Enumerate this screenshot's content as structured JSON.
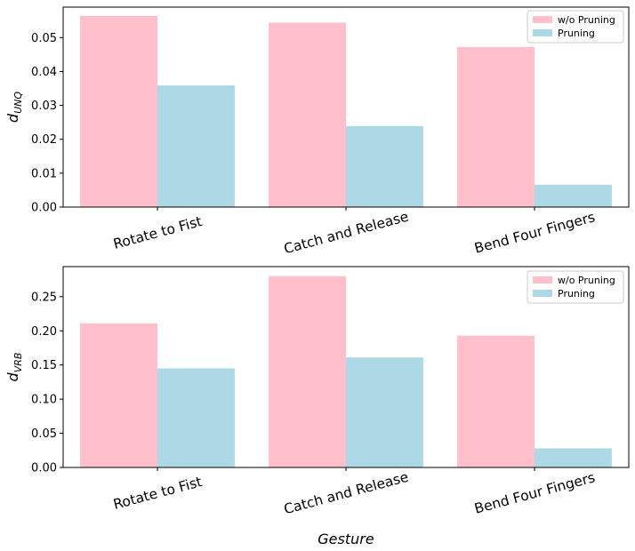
{
  "chart_data": [
    {
      "type": "bar",
      "categories": [
        "Rotate to Fist",
        "Catch and Release",
        "Bend Four Fingers"
      ],
      "series": [
        {
          "name": "w/o Pruning",
          "values": [
            0.0564,
            0.0544,
            0.0472
          ],
          "color": "#ffc0cb"
        },
        {
          "name": "Pruning",
          "values": [
            0.0359,
            0.0239,
            0.0066
          ],
          "color": "#add8e6"
        }
      ],
      "ylabel_main": "d",
      "ylabel_sub": "UNQ",
      "xlabel": "",
      "ylim": [
        0,
        0.059
      ],
      "yticks": [
        "0.00",
        "0.01",
        "0.02",
        "0.03",
        "0.04",
        "0.05"
      ],
      "legend_position": "top-right",
      "grid": false
    },
    {
      "type": "bar",
      "categories": [
        "Rotate to Fist",
        "Catch and Release",
        "Bend Four Fingers"
      ],
      "series": [
        {
          "name": "w/o Pruning",
          "values": [
            0.211,
            0.28,
            0.193
          ],
          "color": "#ffc0cb"
        },
        {
          "name": "Pruning",
          "values": [
            0.145,
            0.161,
            0.028
          ],
          "color": "#add8e6"
        }
      ],
      "ylabel_main": "d",
      "ylabel_sub": "VRB",
      "xlabel": "Gesture",
      "ylim": [
        0,
        0.294
      ],
      "yticks": [
        "0.00",
        "0.05",
        "0.10",
        "0.15",
        "0.20",
        "0.25"
      ],
      "legend_position": "top-right",
      "grid": false
    }
  ]
}
